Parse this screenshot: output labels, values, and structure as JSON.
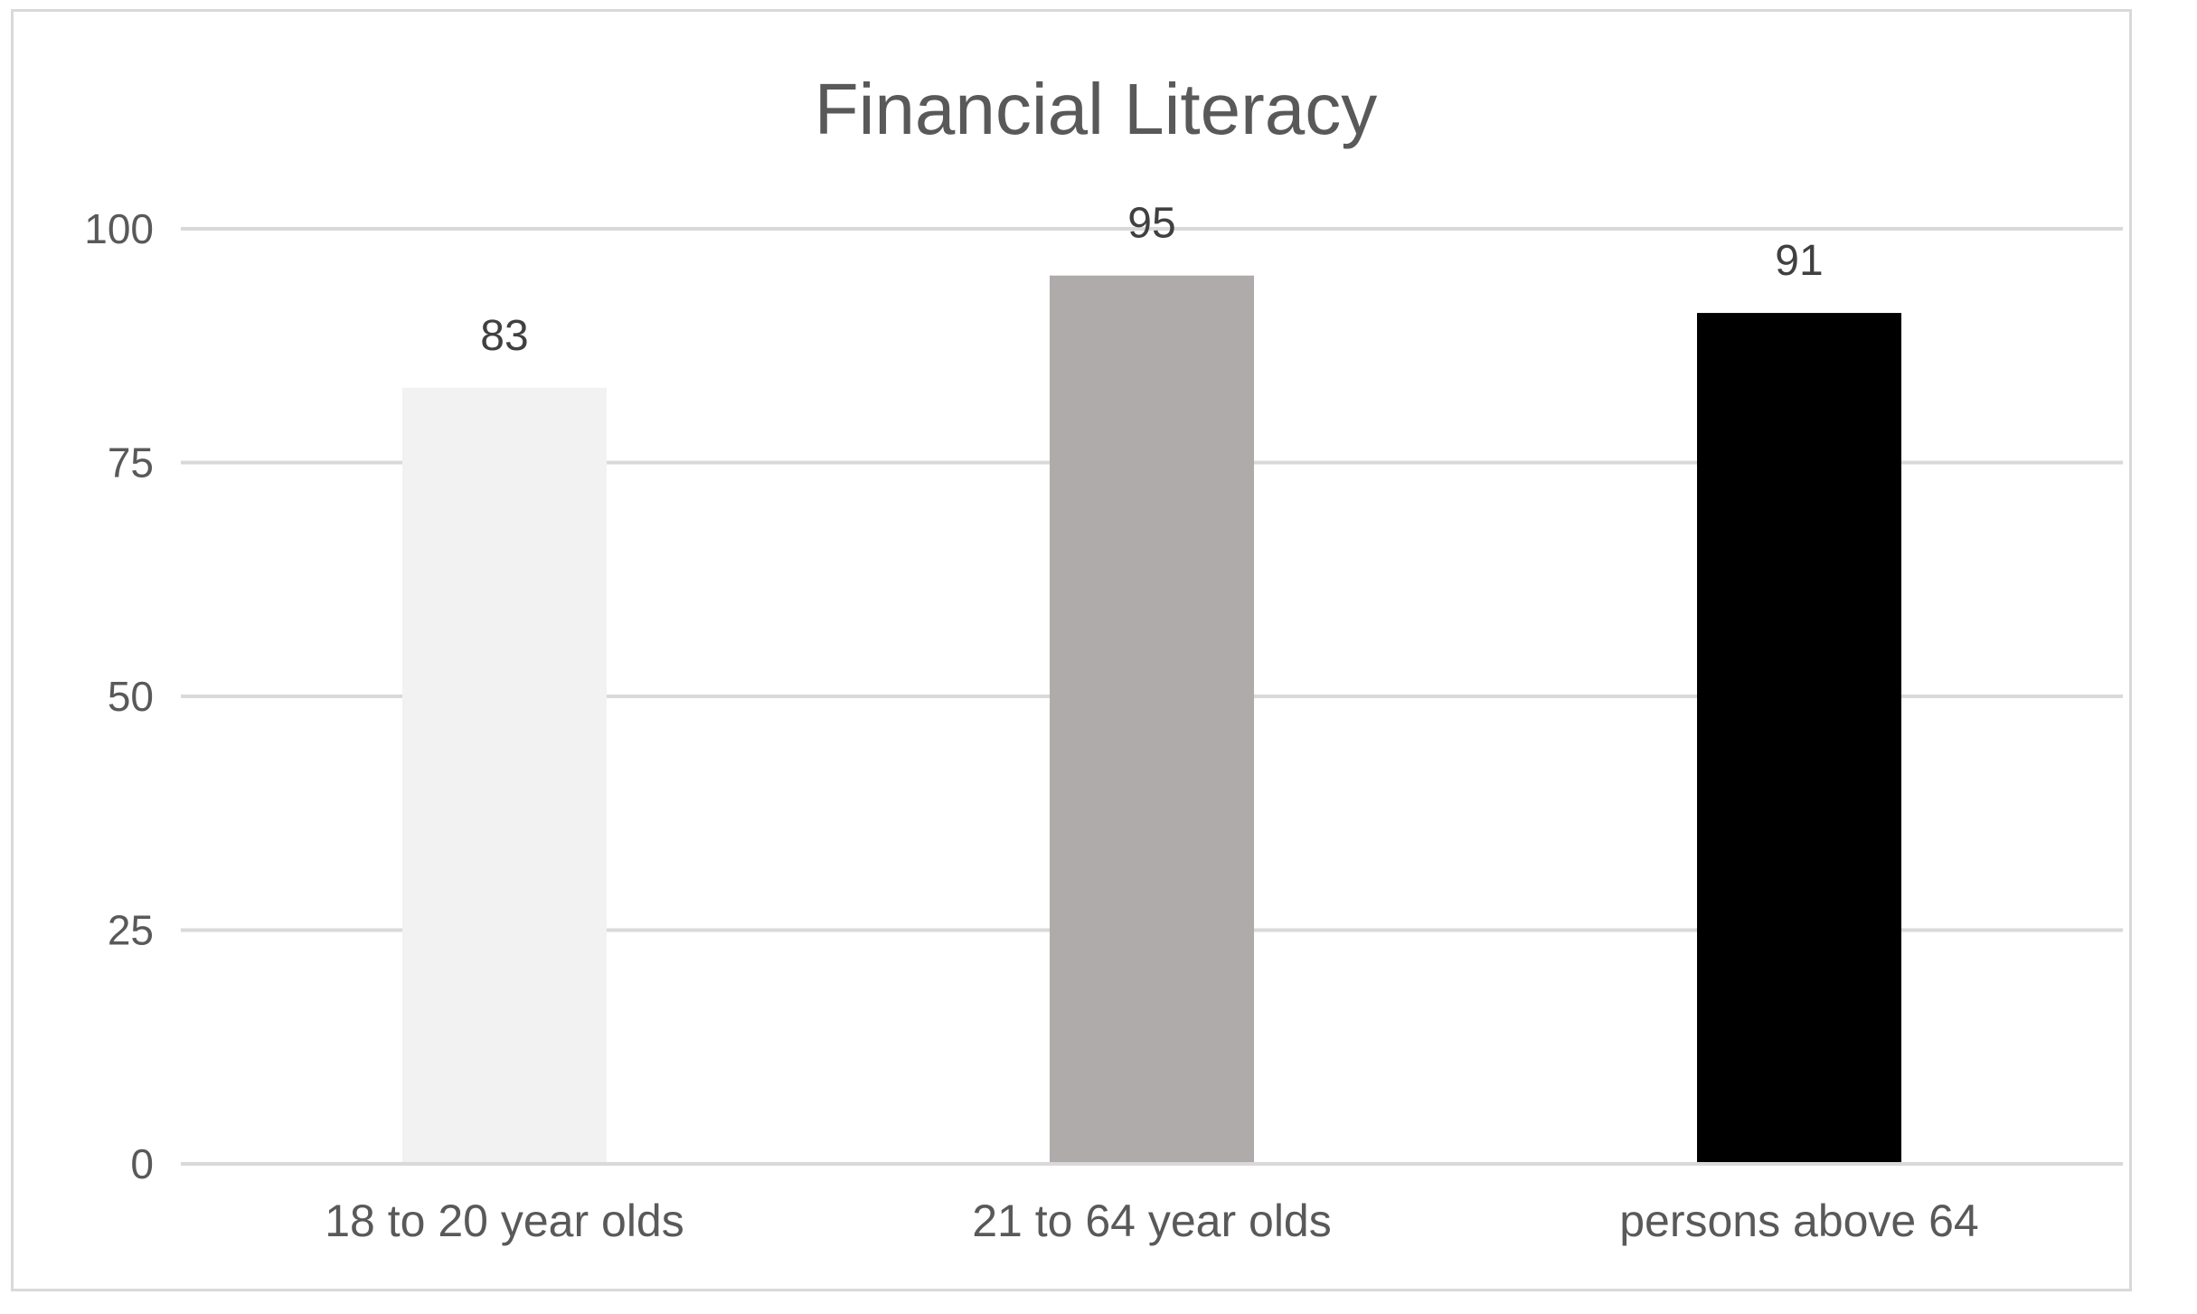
{
  "chart_data": {
    "type": "bar",
    "title": "Financial Literacy",
    "xlabel": "",
    "ylabel": "",
    "categories": [
      "18 to 20 year olds",
      "21 to 64 year olds",
      "persons above 64"
    ],
    "values": [
      83,
      95,
      91
    ],
    "bar_colors": [
      "#f2f2f2",
      "#afabaa",
      "#000000"
    ],
    "ylim": [
      0,
      100
    ],
    "yticks": [
      0,
      25,
      50,
      75,
      100
    ],
    "grid": true,
    "legend": "none",
    "data_labels": true
  }
}
